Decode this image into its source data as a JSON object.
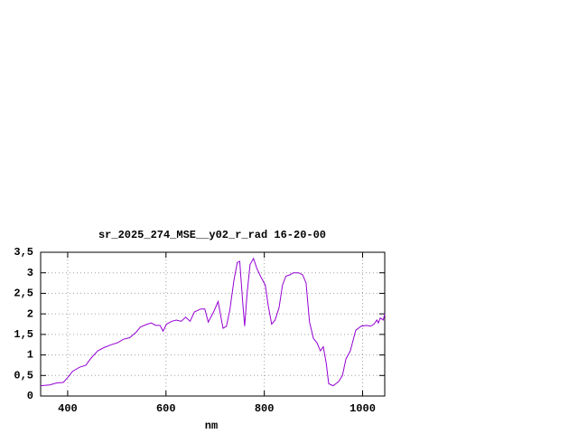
{
  "chart_data": {
    "type": "line",
    "title": "sr_2025_274_MSE__y02_r_rad 16-20-00",
    "xlabel": "nm",
    "x": [
      345,
      363,
      378,
      391,
      400,
      410,
      424,
      437,
      446,
      461,
      474,
      489,
      502,
      513,
      526,
      539,
      548,
      562,
      570,
      579,
      588,
      594,
      601,
      612,
      621,
      631,
      640,
      649,
      658,
      671,
      679,
      686,
      697,
      706,
      716,
      723,
      730,
      738,
      745,
      750,
      756,
      760,
      765,
      771,
      778,
      785,
      793,
      802,
      808,
      815,
      822,
      830,
      837,
      844,
      852,
      859,
      870,
      878,
      885,
      892,
      900,
      907,
      914,
      920,
      926,
      931,
      940,
      951,
      959,
      966,
      975,
      986,
      997,
      1008,
      1016,
      1023,
      1029,
      1032,
      1036,
      1042,
      1045
    ],
    "series": [
      {
        "name": "sr_2025_274_MSE__y02_r_rad",
        "color": "#9400d3",
        "values": [
          0.25,
          0.27,
          0.32,
          0.33,
          0.45,
          0.6,
          0.7,
          0.75,
          0.9,
          1.1,
          1.18,
          1.25,
          1.3,
          1.38,
          1.42,
          1.55,
          1.68,
          1.75,
          1.78,
          1.72,
          1.72,
          1.58,
          1.75,
          1.82,
          1.85,
          1.82,
          1.92,
          1.82,
          2.05,
          2.12,
          2.12,
          1.8,
          2.05,
          2.3,
          1.65,
          1.7,
          2.1,
          2.8,
          3.25,
          3.28,
          2.3,
          1.7,
          2.5,
          3.2,
          3.35,
          3.1,
          2.9,
          2.7,
          2.2,
          1.75,
          1.85,
          2.15,
          2.7,
          2.92,
          2.95,
          3.0,
          3.0,
          2.95,
          2.75,
          1.8,
          1.4,
          1.3,
          1.1,
          1.2,
          0.8,
          0.3,
          0.25,
          0.35,
          0.5,
          0.9,
          1.1,
          1.6,
          1.7,
          1.72,
          1.7,
          1.75,
          1.85,
          1.78,
          1.9,
          1.85,
          2.0
        ]
      }
    ],
    "xlim": [
      345,
      1045
    ],
    "ylim": [
      0,
      3.5
    ],
    "xticks": [
      400,
      600,
      800,
      1000
    ],
    "yticks": [
      0,
      {
        "value": 0.5,
        "label": "0,5"
      },
      1,
      {
        "value": 1.5,
        "label": "1,5"
      },
      2,
      {
        "value": 2.5,
        "label": "2,5"
      },
      3,
      {
        "value": 3.5,
        "label": "3,5"
      }
    ],
    "grid": true
  }
}
